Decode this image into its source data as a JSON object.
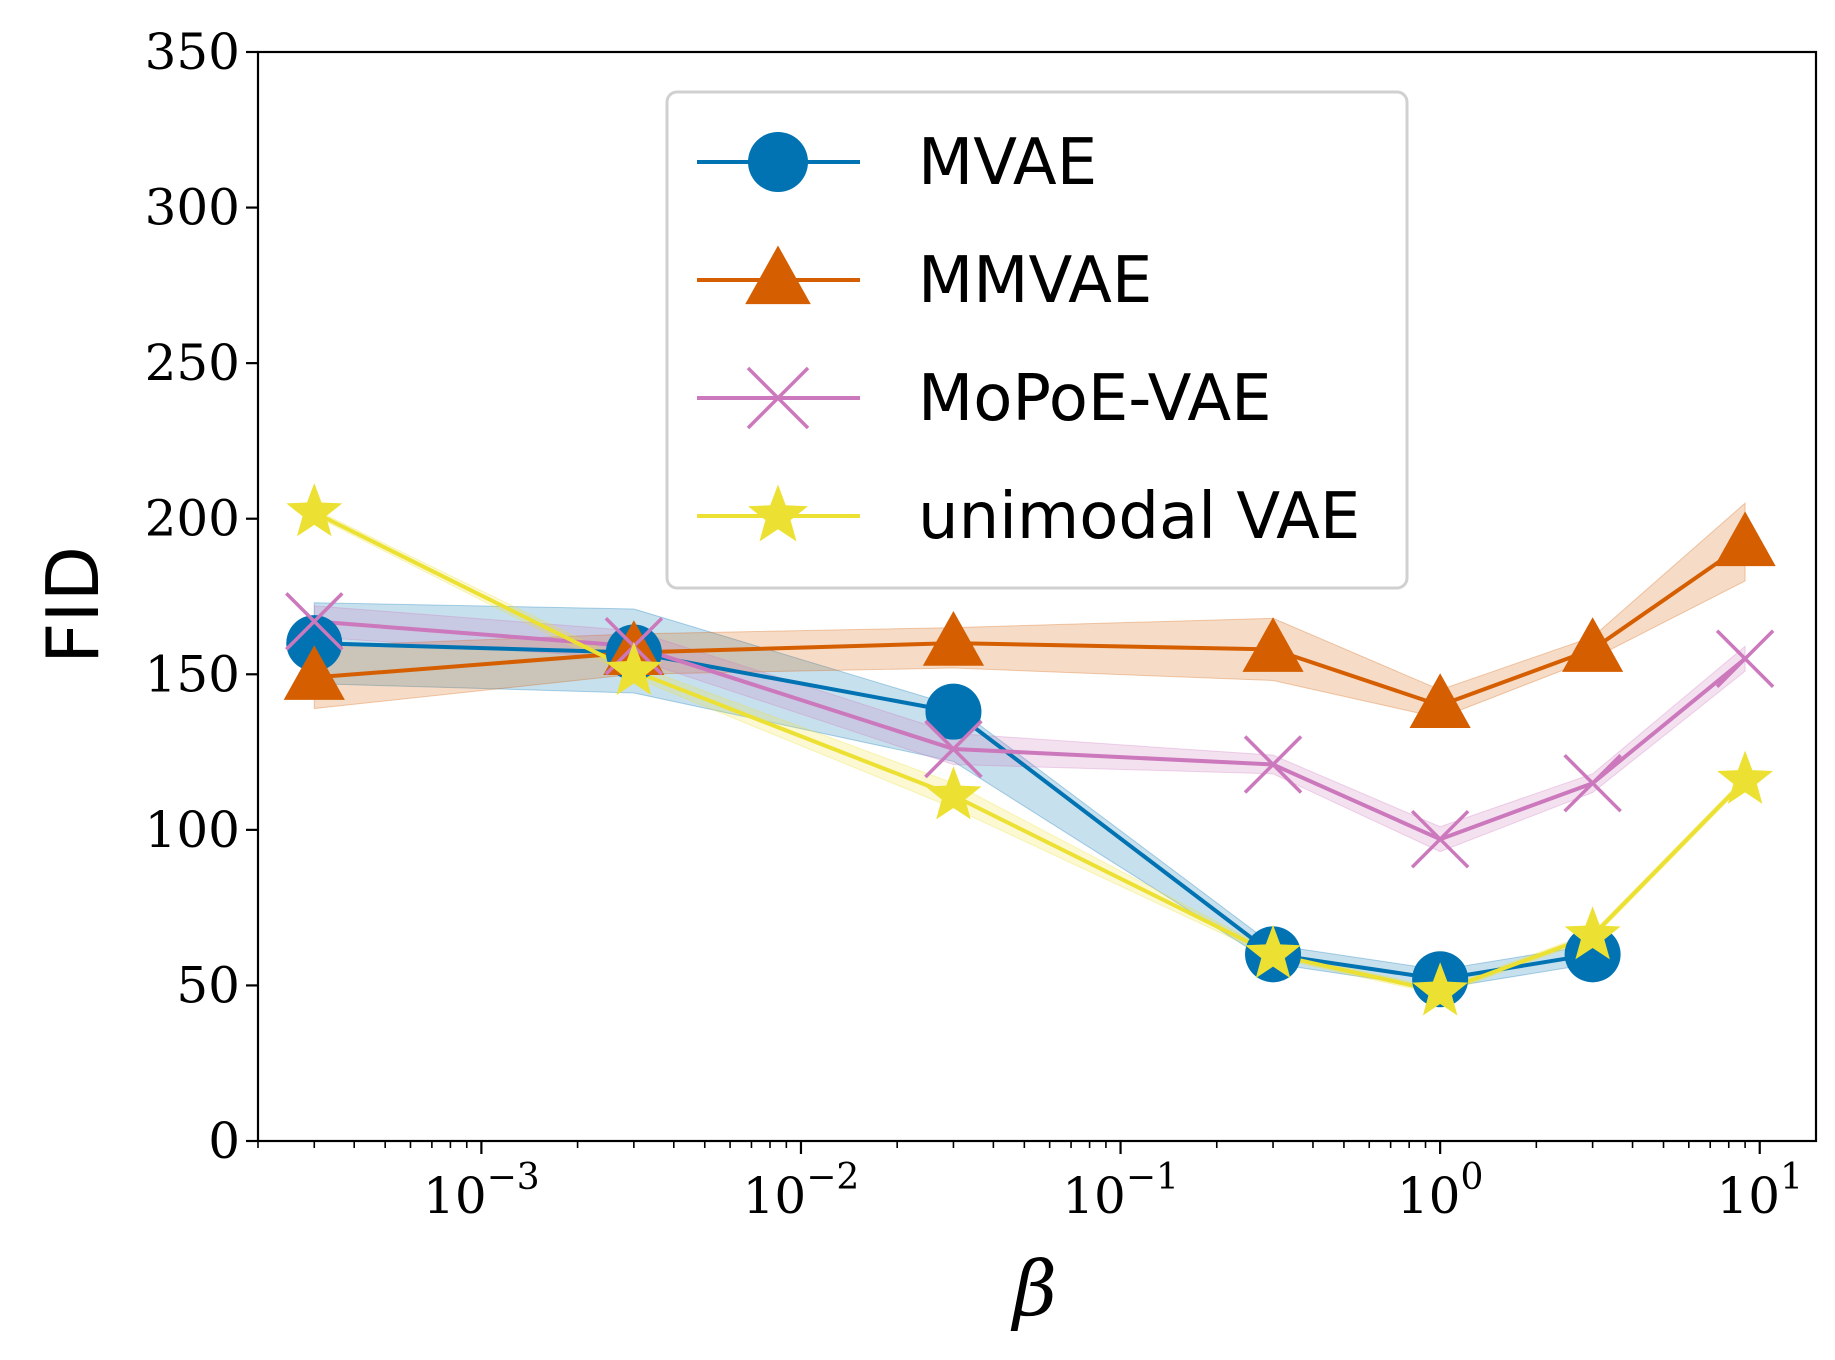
{
  "chart_data": {
    "type": "line",
    "title": "",
    "xlabel": "β",
    "ylabel": "FID",
    "xscale": "log",
    "xlim": [
      0.0002,
      15
    ],
    "ylim": [
      0,
      350
    ],
    "yticks": [
      0,
      50,
      100,
      150,
      200,
      250,
      300,
      350
    ],
    "ytick_labels": [
      "0",
      "50",
      "100",
      "150",
      "200",
      "250",
      "300",
      "350"
    ],
    "xticks": [
      0.001,
      0.01,
      0.1,
      1,
      10
    ],
    "xtick_labels": [
      {
        "base": "10",
        "exp": "−3"
      },
      {
        "base": "10",
        "exp": "−2"
      },
      {
        "base": "10",
        "exp": "−1"
      },
      {
        "base": "10",
        "exp": "0"
      },
      {
        "base": "10",
        "exp": "1"
      }
    ],
    "grid": false,
    "legend_position": "top-center",
    "series": [
      {
        "name": "MVAE",
        "color": "#0173b2",
        "marker": "circle",
        "x": [
          0.0003,
          0.003,
          0.03,
          0.3,
          1,
          3
        ],
        "y": [
          160,
          157,
          138,
          60,
          52,
          60
        ],
        "y_lower": [
          147,
          144,
          122,
          57,
          49,
          57
        ],
        "y_upper": [
          173,
          171,
          140,
          63,
          55,
          63
        ]
      },
      {
        "name": "MMVAE",
        "color": "#d55e00",
        "marker": "triangle",
        "x": [
          0.0003,
          0.003,
          0.03,
          0.3,
          1,
          3,
          9
        ],
        "y": [
          149,
          157,
          160,
          158,
          140,
          158,
          192
        ],
        "y_lower": [
          139,
          150,
          152,
          148,
          136,
          155,
          180
        ],
        "y_upper": [
          159,
          163,
          165,
          168,
          145,
          162,
          205
        ]
      },
      {
        "name": "MoPoE-VAE",
        "color": "#cc78bc",
        "marker": "x",
        "x": [
          0.0003,
          0.003,
          0.03,
          0.3,
          1,
          3,
          9
        ],
        "y": [
          167,
          159,
          126,
          121,
          97,
          115,
          155
        ],
        "y_lower": [
          162,
          155,
          121,
          118,
          93,
          112,
          151
        ],
        "y_upper": [
          172,
          164,
          131,
          124,
          101,
          118,
          159
        ]
      },
      {
        "name": "unimodal VAE",
        "color": "#ece133",
        "marker": "star",
        "x": [
          0.0003,
          0.003,
          0.03,
          0.3,
          1,
          3,
          9
        ],
        "y": [
          202,
          151,
          111,
          60,
          48,
          66,
          116
        ],
        "y_lower": [
          201,
          149,
          107,
          59,
          47,
          65,
          115
        ],
        "y_upper": [
          203,
          153,
          115,
          61,
          49,
          67,
          117
        ]
      }
    ]
  }
}
